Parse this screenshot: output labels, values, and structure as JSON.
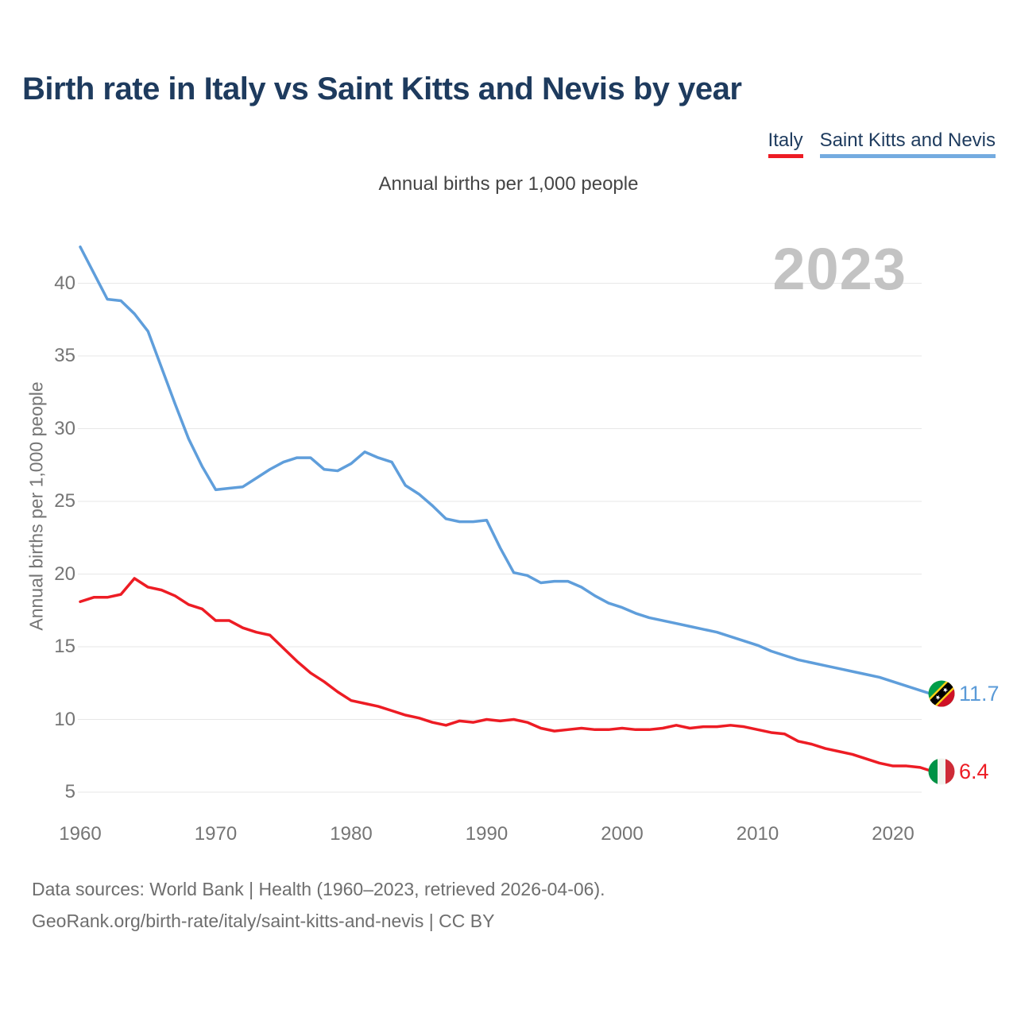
{
  "page": {
    "title": "Birth rate in Italy vs Saint Kitts and Nevis by year",
    "watermark_year": "2023"
  },
  "legend": {
    "items": [
      {
        "label": "Italy",
        "color": "#ed1c24"
      },
      {
        "label": "Saint Kitts and Nevis",
        "color": "#74abe0"
      }
    ]
  },
  "chart_data": {
    "type": "line",
    "title": "Annual births per 1,000 people",
    "xlabel": "",
    "ylabel": "Annual births per 1,000 people",
    "x_ticks": [
      1960,
      1970,
      1980,
      1990,
      2000,
      2010,
      2020
    ],
    "y_ticks": [
      5,
      10,
      15,
      20,
      25,
      30,
      35,
      40
    ],
    "xlim": [
      1960,
      2023
    ],
    "ylim": [
      4,
      43.5
    ],
    "grid": "horizontal-gridlines-only",
    "legend_position": "top-right",
    "watermark": "2023",
    "gridline_color": "#e7e7e7",
    "years": [
      1960,
      1961,
      1962,
      1963,
      1964,
      1965,
      1966,
      1967,
      1968,
      1969,
      1970,
      1971,
      1972,
      1973,
      1974,
      1975,
      1976,
      1977,
      1978,
      1979,
      1980,
      1981,
      1982,
      1983,
      1984,
      1985,
      1986,
      1987,
      1988,
      1989,
      1990,
      1991,
      1992,
      1993,
      1994,
      1995,
      1996,
      1997,
      1998,
      1999,
      2000,
      2001,
      2002,
      2003,
      2004,
      2005,
      2006,
      2007,
      2008,
      2009,
      2010,
      2011,
      2012,
      2013,
      2014,
      2015,
      2016,
      2017,
      2018,
      2019,
      2020,
      2021,
      2022,
      2023
    ],
    "series": [
      {
        "name": "Italy",
        "color": "#ed1c24",
        "end_label": "6.4",
        "values": [
          18.1,
          18.4,
          18.4,
          18.6,
          19.7,
          19.1,
          18.9,
          18.5,
          17.9,
          17.6,
          16.8,
          16.8,
          16.3,
          16.0,
          15.8,
          14.9,
          14.0,
          13.2,
          12.6,
          11.9,
          11.3,
          11.1,
          10.9,
          10.6,
          10.3,
          10.1,
          9.8,
          9.6,
          9.9,
          9.8,
          10.0,
          9.9,
          10.0,
          9.8,
          9.4,
          9.2,
          9.3,
          9.4,
          9.3,
          9.3,
          9.4,
          9.3,
          9.3,
          9.4,
          9.6,
          9.4,
          9.5,
          9.5,
          9.6,
          9.5,
          9.3,
          9.1,
          9.0,
          8.5,
          8.3,
          8.0,
          7.8,
          7.6,
          7.3,
          7.0,
          6.8,
          6.8,
          6.7,
          6.4
        ]
      },
      {
        "name": "Saint Kitts and Nevis",
        "color": "#5f9edb",
        "end_label": "11.7",
        "values": [
          42.5,
          40.7,
          38.9,
          38.8,
          37.9,
          36.7,
          34.2,
          31.7,
          29.3,
          27.4,
          25.8,
          25.9,
          26.0,
          26.6,
          27.2,
          27.7,
          28.0,
          28.0,
          27.2,
          27.1,
          27.6,
          28.4,
          28.0,
          27.7,
          26.1,
          25.5,
          24.7,
          23.8,
          23.6,
          23.6,
          23.7,
          21.8,
          20.1,
          19.9,
          19.4,
          19.5,
          19.5,
          19.1,
          18.5,
          18.0,
          17.7,
          17.3,
          17.0,
          16.8,
          16.6,
          16.4,
          16.2,
          16.0,
          15.7,
          15.4,
          15.1,
          14.7,
          14.4,
          14.1,
          13.9,
          13.7,
          13.5,
          13.3,
          13.1,
          12.9,
          12.6,
          12.3,
          12.0,
          11.7
        ]
      }
    ]
  },
  "footer": {
    "line1": "Data sources: World Bank | Health (1960–2023, retrieved 2026-04-06).",
    "line2": "GeoRank.org/birth-rate/italy/saint-kitts-and-nevis | CC BY"
  }
}
